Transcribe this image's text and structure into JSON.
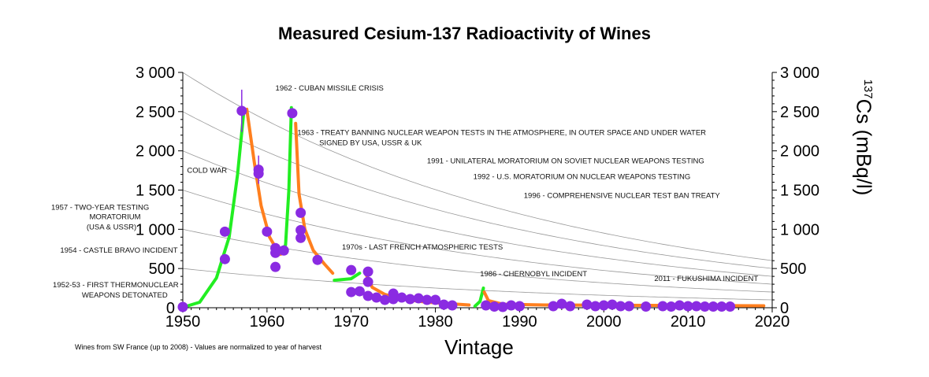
{
  "chart_data": {
    "type": "scatter",
    "title": "Measured Cesium-137 Radioactivity of Wines",
    "xlabel": "Vintage",
    "ylabel": {
      "sup": "137",
      "text": "Cs (mBq/l)"
    },
    "xlim": [
      1950,
      2020
    ],
    "ylim": [
      0,
      3000
    ],
    "x_ticks": [
      1950,
      1960,
      1970,
      1980,
      1990,
      2000,
      2010,
      2020
    ],
    "y_ticks": [
      {
        "value": 0,
        "label": "0"
      },
      {
        "value": 500,
        "label": "500"
      },
      {
        "value": 1000,
        "label": "1 000"
      },
      {
        "value": 1500,
        "label": "1 500"
      },
      {
        "value": 2000,
        "label": "2 000"
      },
      {
        "value": 2500,
        "label": "2 500"
      },
      {
        "value": 3000,
        "label": "3 000"
      }
    ],
    "footnote": "Wines from SW France (up to 2008) - Values are normalized to year of harvest",
    "colors": {
      "points": "#8a2be2",
      "rise": "#22ee22",
      "decay": "#ff7f1e",
      "decay_curves": "#999999"
    },
    "points": [
      {
        "x": 1950,
        "y": 10
      },
      {
        "x": 1955,
        "y": 970
      },
      {
        "x": 1955,
        "y": 620
      },
      {
        "x": 1957,
        "y": 2510,
        "err": 270
      },
      {
        "x": 1959,
        "y": 1760,
        "err": 180
      },
      {
        "x": 1959,
        "y": 1710
      },
      {
        "x": 1960,
        "y": 970
      },
      {
        "x": 1961,
        "y": 760
      },
      {
        "x": 1961,
        "y": 700
      },
      {
        "x": 1962,
        "y": 730
      },
      {
        "x": 1961,
        "y": 520
      },
      {
        "x": 1963,
        "y": 2480
      },
      {
        "x": 1964,
        "y": 1210
      },
      {
        "x": 1964,
        "y": 990
      },
      {
        "x": 1964,
        "y": 890
      },
      {
        "x": 1966,
        "y": 610
      },
      {
        "x": 1970,
        "y": 480
      },
      {
        "x": 1970,
        "y": 200
      },
      {
        "x": 1971,
        "y": 210
      },
      {
        "x": 1972,
        "y": 460
      },
      {
        "x": 1972,
        "y": 330
      },
      {
        "x": 1972,
        "y": 150
      },
      {
        "x": 1973,
        "y": 130
      },
      {
        "x": 1974,
        "y": 100
      },
      {
        "x": 1975,
        "y": 180
      },
      {
        "x": 1975,
        "y": 110
      },
      {
        "x": 1976,
        "y": 130
      },
      {
        "x": 1977,
        "y": 110
      },
      {
        "x": 1978,
        "y": 120
      },
      {
        "x": 1979,
        "y": 100
      },
      {
        "x": 1980,
        "y": 100
      },
      {
        "x": 1981,
        "y": 40
      },
      {
        "x": 1982,
        "y": 30
      },
      {
        "x": 1986,
        "y": 30
      },
      {
        "x": 1987,
        "y": 15
      },
      {
        "x": 1988,
        "y": 10
      },
      {
        "x": 1989,
        "y": 30
      },
      {
        "x": 1990,
        "y": 20
      },
      {
        "x": 1994,
        "y": 20
      },
      {
        "x": 1995,
        "y": 50
      },
      {
        "x": 1996,
        "y": 20
      },
      {
        "x": 1998,
        "y": 40
      },
      {
        "x": 1999,
        "y": 20
      },
      {
        "x": 2000,
        "y": 30
      },
      {
        "x": 2001,
        "y": 40
      },
      {
        "x": 2002,
        "y": 20
      },
      {
        "x": 2003,
        "y": 20
      },
      {
        "x": 2005,
        "y": 15
      },
      {
        "x": 2007,
        "y": 20
      },
      {
        "x": 2008,
        "y": 15
      },
      {
        "x": 2009,
        "y": 30
      },
      {
        "x": 2010,
        "y": 20
      },
      {
        "x": 2011,
        "y": 20
      },
      {
        "x": 2012,
        "y": 15
      },
      {
        "x": 2013,
        "y": 15
      },
      {
        "x": 2014,
        "y": 15
      },
      {
        "x": 2015,
        "y": 15
      }
    ],
    "rise_segments": [
      [
        [
          1950,
          5
        ],
        [
          1952,
          70
        ],
        [
          1954,
          380
        ],
        [
          1955.5,
          900
        ],
        [
          1956.5,
          1700
        ],
        [
          1957.2,
          2450
        ]
      ],
      [
        [
          1961.5,
          700
        ],
        [
          1962.2,
          800
        ],
        [
          1962.6,
          1500
        ],
        [
          1962.9,
          2550
        ]
      ],
      [
        [
          1968,
          350
        ],
        [
          1970,
          370
        ],
        [
          1971,
          440
        ]
      ],
      [
        [
          1984.7,
          20
        ],
        [
          1985.3,
          80
        ],
        [
          1985.7,
          250
        ]
      ]
    ],
    "decay_segments": [
      [
        [
          1957.6,
          2530
        ],
        [
          1958.5,
          1850
        ],
        [
          1959.3,
          1300
        ],
        [
          1960.3,
          900
        ],
        [
          1961.5,
          680
        ],
        [
          1962.3,
          700
        ]
      ],
      [
        [
          1963.4,
          2350
        ],
        [
          1963.8,
          1450
        ],
        [
          1964.5,
          1000
        ],
        [
          1965.5,
          730
        ],
        [
          1966.8,
          560
        ],
        [
          1967.8,
          440
        ]
      ],
      [
        [
          1971.7,
          440
        ],
        [
          1972.5,
          260
        ],
        [
          1974,
          170
        ],
        [
          1976,
          110
        ],
        [
          1979,
          70
        ],
        [
          1984,
          35
        ]
      ],
      [
        [
          1985.8,
          200
        ],
        [
          1986.3,
          90
        ],
        [
          1988,
          45
        ],
        [
          1993,
          35
        ],
        [
          2005,
          30
        ],
        [
          2019,
          25
        ]
      ]
    ],
    "decay_curve_starts": [
      {
        "x": 1950,
        "y": 3000
      },
      {
        "x": 1950,
        "y": 2500
      },
      {
        "x": 1950,
        "y": 2000
      },
      {
        "x": 1950,
        "y": 1500
      },
      {
        "x": 1950,
        "y": 1000
      },
      {
        "x": 1950,
        "y": 500
      }
    ],
    "half_life_years": 30.17,
    "annotations": [
      {
        "text": "1962 - CUBAN MISSILE CRISIS",
        "x": 1961,
        "y": 2770,
        "align": "start"
      },
      {
        "text": "1963 - TREATY BANNING NUCLEAR WEAPON TESTS IN THE ATMOSPHERE, IN OUTER SPACE AND UNDER WATER",
        "x": 1963.6,
        "y": 2200,
        "align": "start"
      },
      {
        "text": "SIGNED BY USA, USSR & UK",
        "x": 1966.2,
        "y": 2070,
        "align": "start"
      },
      {
        "text": "1991 - UNILATERAL MORATORIUM ON SOVIET NUCLEAR WEAPONS TESTING",
        "x": 1979,
        "y": 1840,
        "align": "start"
      },
      {
        "text": "1992 - U.S. MORATORIUM ON NUCLEAR WEAPONS TESTING",
        "x": 1984.5,
        "y": 1640,
        "align": "start"
      },
      {
        "text": "1996 - COMPREHENSIVE NUCLEAR TEST BAN TREATY",
        "x": 1990.5,
        "y": 1400,
        "align": "start"
      },
      {
        "text": "COLD WAR",
        "x": 1950.5,
        "y": 1720,
        "align": "start"
      },
      {
        "text": "1957 - TWO-YEAR TESTING",
        "x": 1946,
        "y": 1250,
        "align": "end"
      },
      {
        "text": "MORATORIUM",
        "x": 1945,
        "y": 1130,
        "align": "end"
      },
      {
        "text": "(USA & USSR)",
        "x": 1944.5,
        "y": 1000,
        "align": "end"
      },
      {
        "text": "1954 - CASTLE BRAVO INCIDENT",
        "x": 1949.4,
        "y": 700,
        "align": "end"
      },
      {
        "text": "1970s - LAST FRENCH ATMOSPHERIC TESTS",
        "x": 1968.9,
        "y": 740,
        "align": "start"
      },
      {
        "text": "1986 - CHERNOBYL INCIDENT",
        "x": 1985.3,
        "y": 400,
        "align": "start"
      },
      {
        "text": "2011 - FUKUSHIMA INCIDENT",
        "x": 2006,
        "y": 340,
        "align": "start"
      },
      {
        "text": "1952-53 - FIRST THERMONUCLEAR",
        "x": 1949.5,
        "y": 260,
        "align": "end"
      },
      {
        "text": "WEAPONS DETONATED",
        "x": 1948.2,
        "y": 130,
        "align": "end"
      }
    ]
  }
}
